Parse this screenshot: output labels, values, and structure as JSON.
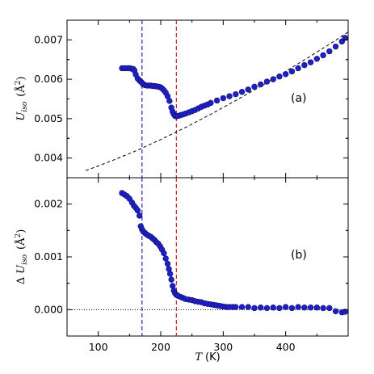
{
  "chart_data": [
    {
      "panel": "(a)",
      "type": "scatter",
      "ylabel": "U_iso (Å²)",
      "ylim": [
        0.0035,
        0.0075
      ],
      "xlim": [
        50,
        500
      ],
      "yticks": [
        "0.004",
        "0.005",
        "0.006",
        "0.007"
      ],
      "ytick_values": [
        0.004,
        0.005,
        0.006,
        0.007
      ],
      "vlines": [
        {
          "x": 170,
          "color": "#2222bb",
          "style": "dashed"
        },
        {
          "x": 225,
          "color": "#cc2222",
          "style": "dashed"
        }
      ],
      "fit_line": {
        "style": "dashed",
        "color": "#000000",
        "x": [
          80,
          120,
          160,
          200,
          240,
          280,
          320,
          360,
          400,
          440,
          480,
          500
        ],
        "y": [
          0.00368,
          0.00392,
          0.00418,
          0.00447,
          0.00478,
          0.00511,
          0.00546,
          0.00582,
          0.0062,
          0.00659,
          0.00699,
          0.0072
        ]
      },
      "series": [
        {
          "color": "#2020c0",
          "x": [
            138,
            142,
            146,
            150,
            153,
            156,
            158,
            160,
            163,
            166,
            168,
            170,
            172,
            175,
            178,
            181,
            184,
            187,
            190,
            193,
            196,
            199,
            202,
            205,
            208,
            211,
            214,
            217,
            219,
            221,
            223,
            225,
            228,
            232,
            236,
            240,
            245,
            250,
            255,
            260,
            265,
            270,
            275,
            280,
            290,
            300,
            310,
            320,
            330,
            340,
            350,
            360,
            370,
            380,
            390,
            400,
            410,
            420,
            430,
            440,
            450,
            460,
            470,
            480,
            490,
            495
          ],
          "y": [
            0.00628,
            0.00628,
            0.00628,
            0.00628,
            0.00627,
            0.00626,
            0.00622,
            0.00612,
            0.00602,
            0.00597,
            0.00594,
            0.00591,
            0.00587,
            0.00585,
            0.00584,
            0.00584,
            0.00584,
            0.00583,
            0.00583,
            0.00582,
            0.00581,
            0.0058,
            0.00577,
            0.00572,
            0.00566,
            0.00557,
            0.00545,
            0.00528,
            0.00518,
            0.00511,
            0.00507,
            0.00506,
            0.00507,
            0.00509,
            0.00511,
            0.00513,
            0.00516,
            0.00519,
            0.00522,
            0.00526,
            0.0053,
            0.00533,
            0.00536,
            0.0054,
            0.00546,
            0.00552,
            0.00557,
            0.00562,
            0.00568,
            0.00574,
            0.00581,
            0.00587,
            0.00594,
            0.006,
            0.00607,
            0.00613,
            0.0062,
            0.00628,
            0.00636,
            0.00643,
            0.00652,
            0.00661,
            0.00671,
            0.00683,
            0.00696,
            0.00705
          ]
        }
      ]
    },
    {
      "panel": "(b)",
      "type": "scatter",
      "xlabel": "T (K)",
      "ylabel": "Δ U_iso (Å²)",
      "ylim": [
        -0.0005,
        0.0025
      ],
      "xlim": [
        50,
        500
      ],
      "xticks": [
        "100",
        "200",
        "300",
        "400"
      ],
      "xtick_values": [
        100,
        200,
        300,
        400
      ],
      "yticks": [
        "0.000",
        "0.001",
        "0.002"
      ],
      "ytick_values": [
        0,
        0.001,
        0.002
      ],
      "hline": {
        "y": 0,
        "style": "dotted",
        "color": "#000000"
      },
      "vlines": [
        {
          "x": 170,
          "color": "#2222bb",
          "style": "dashed"
        },
        {
          "x": 225,
          "color": "#cc2222",
          "style": "dashed"
        }
      ],
      "series": [
        {
          "color": "#2020c0",
          "x": [
            138,
            142,
            146,
            150,
            154,
            157,
            160,
            163,
            166,
            168,
            170,
            172,
            175,
            178,
            181,
            184,
            187,
            190,
            193,
            196,
            199,
            202,
            205,
            208,
            211,
            213,
            215,
            217,
            219,
            221,
            223,
            225,
            228,
            232,
            236,
            240,
            245,
            250,
            255,
            260,
            265,
            270,
            275,
            280,
            285,
            290,
            295,
            300,
            305,
            310,
            315,
            320,
            330,
            340,
            350,
            360,
            370,
            380,
            390,
            400,
            410,
            420,
            430,
            440,
            450,
            460,
            470,
            480,
            490,
            495
          ],
          "y": [
            0.00221,
            0.00218,
            0.00215,
            0.0021,
            0.00203,
            0.00197,
            0.00193,
            0.00188,
            0.00178,
            0.00158,
            0.00152,
            0.00148,
            0.00145,
            0.00142,
            0.0014,
            0.00138,
            0.00135,
            0.00132,
            0.00128,
            0.00125,
            0.0012,
            0.00114,
            0.00107,
            0.00097,
            0.00087,
            0.00077,
            0.00068,
            0.00057,
            0.00045,
            0.00036,
            0.00031,
            0.00028,
            0.00026,
            0.00024,
            0.00022,
            0.0002,
            0.00019,
            0.00018,
            0.00016,
            0.00015,
            0.00014,
            0.00012,
            0.00011,
            0.0001,
            9e-05,
            8e-05,
            7e-05,
            6e-05,
            5e-05,
            5e-05,
            5e-05,
            5e-05,
            5e-05,
            5e-05,
            3e-05,
            4e-05,
            3e-05,
            4e-05,
            3e-05,
            5e-05,
            3e-05,
            5e-05,
            4e-05,
            4e-05,
            4e-05,
            3e-05,
            3e-05,
            -3e-05,
            -5e-05,
            -4e-05
          ]
        }
      ]
    }
  ],
  "labels": {
    "a_ylabel_main": "U",
    "a_ylabel_sub": "iso",
    "a_ylabel_unit_open": "(",
    "a_ylabel_unit": "Å",
    "a_ylabel_sup": "2",
    "a_ylabel_unit_close": ")",
    "b_ylabel_delta": "Δ",
    "b_ylabel_main": "U",
    "b_ylabel_sub": "iso",
    "b_ylabel_unit_open": "(",
    "b_ylabel_unit": "Å",
    "b_ylabel_sup": "2",
    "b_ylabel_unit_close": ")",
    "xlabel_var": "T",
    "xlabel_unit": "(K)"
  }
}
